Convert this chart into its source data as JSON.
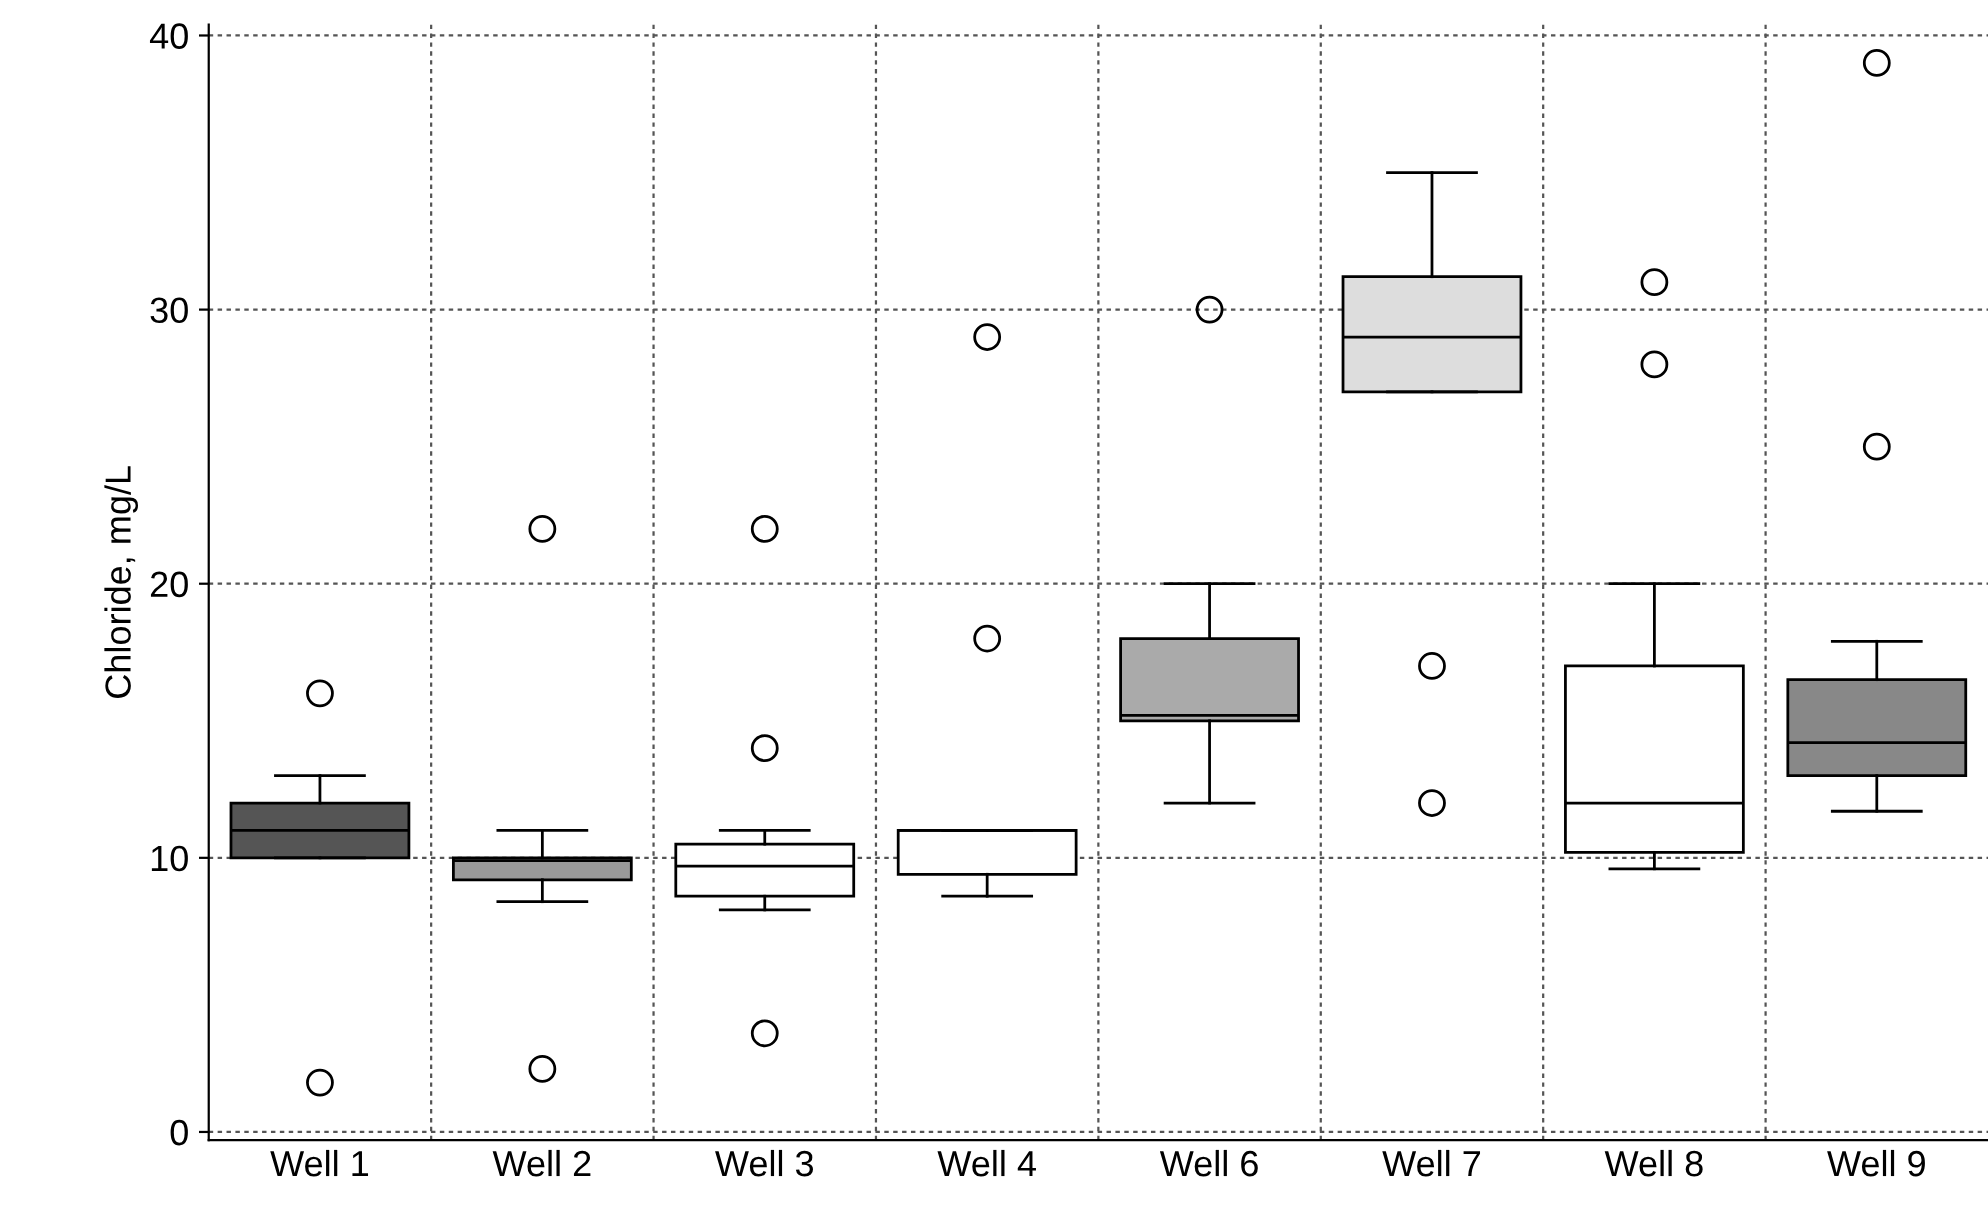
{
  "chart_data": {
    "type": "box",
    "ylabel": "Chloride, mg/L",
    "categories": [
      "Well 1",
      "Well 2",
      "Well 3",
      "Well 4",
      "Well 6",
      "Well 7",
      "Well 8",
      "Well 9"
    ],
    "colors": [
      "#555555",
      "#999999",
      "#ffffff",
      "#ffffff",
      "#aaaaaa",
      "#dddddd",
      "#ffffff",
      "#888888"
    ],
    "boxes": [
      {
        "low": 10,
        "q1": 10,
        "median": 11,
        "q3": 12,
        "high": 13,
        "outliers": [
          16,
          1.8
        ]
      },
      {
        "low": 8.4,
        "q1": 9.2,
        "median": 9.9,
        "q3": 10,
        "high": 11,
        "outliers": [
          22,
          2.3
        ]
      },
      {
        "low": 8.1,
        "q1": 8.6,
        "median": 9.7,
        "q3": 10.5,
        "high": 11,
        "outliers": [
          22,
          14,
          3.6
        ]
      },
      {
        "low": 8.6,
        "q1": 9.4,
        "median": 11,
        "q3": 11,
        "high": 11,
        "outliers": [
          29,
          18
        ]
      },
      {
        "low": 12,
        "q1": 15,
        "median": 15.2,
        "q3": 18,
        "high": 20,
        "outliers": [
          30
        ]
      },
      {
        "low": 27,
        "q1": 27,
        "median": 29,
        "q3": 31.2,
        "high": 35,
        "outliers": [
          17,
          12
        ]
      },
      {
        "low": 9.6,
        "q1": 10.2,
        "median": 12,
        "q3": 17,
        "high": 20,
        "outliers": [
          31,
          28
        ]
      },
      {
        "low": 11.7,
        "q1": 13,
        "median": 14.2,
        "q3": 16.5,
        "high": 17.9,
        "outliers": [
          39,
          25
        ]
      }
    ],
    "ylim": [
      -0.3,
      40.4
    ],
    "yticks": [
      0,
      10,
      20,
      30,
      40
    ],
    "grid": true
  }
}
